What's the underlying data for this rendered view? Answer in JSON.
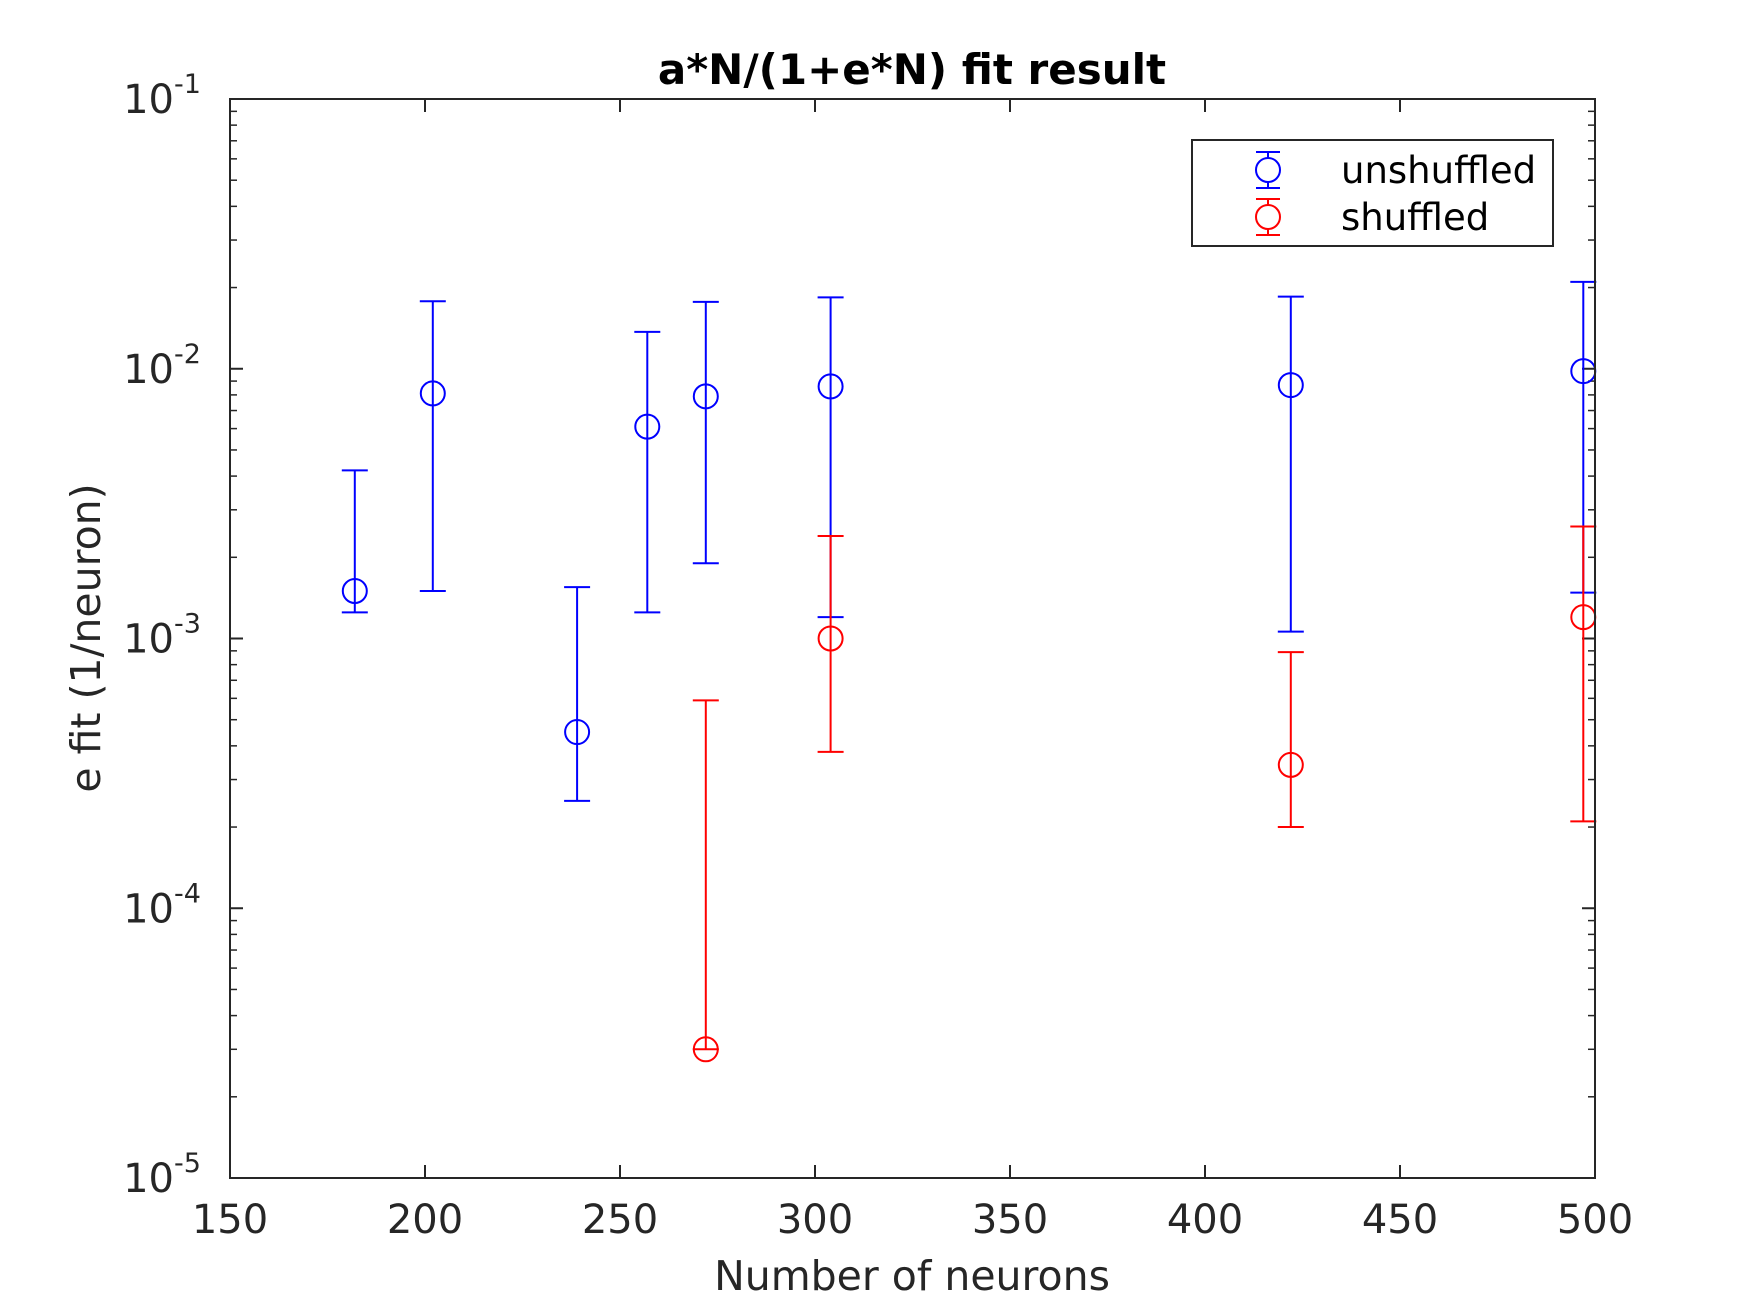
{
  "chart_data": {
    "type": "scatter",
    "title": "a*N/(1+e*N) fit result",
    "xlabel": "Number of neurons",
    "ylabel": "e fit (1/neuron)",
    "xlim": [
      150,
      500
    ],
    "ylim": [
      1e-05,
      0.1
    ],
    "yscale": "log",
    "grid": false,
    "legend_position": "top-right",
    "x_ticks": [
      150,
      200,
      250,
      300,
      350,
      400,
      450,
      500
    ],
    "x_tick_labels": [
      "150",
      "200",
      "250",
      "300",
      "350",
      "400",
      "450",
      "500"
    ],
    "y_ticks": [
      1e-05,
      0.0001,
      0.001,
      0.01,
      0.1
    ],
    "y_tick_labels": [
      {
        "base": "10",
        "exp": "-5"
      },
      {
        "base": "10",
        "exp": "-4"
      },
      {
        "base": "10",
        "exp": "-3"
      },
      {
        "base": "10",
        "exp": "-2"
      },
      {
        "base": "10",
        "exp": "-1"
      }
    ],
    "series": [
      {
        "name": "unshuffled",
        "color": "#0000ff",
        "marker": "circle",
        "points": [
          {
            "x": 182,
            "y": 0.0015,
            "lower": 0.00125,
            "upper": 0.0042
          },
          {
            "x": 202,
            "y": 0.0081,
            "lower": 0.0015,
            "upper": 0.0178
          },
          {
            "x": 239,
            "y": 0.00045,
            "lower": 0.00025,
            "upper": 0.00155
          },
          {
            "x": 257,
            "y": 0.0061,
            "lower": 0.00125,
            "upper": 0.0137
          },
          {
            "x": 272,
            "y": 0.0079,
            "lower": 0.0019,
            "upper": 0.0177
          },
          {
            "x": 304,
            "y": 0.0086,
            "lower": 0.0012,
            "upper": 0.0184
          },
          {
            "x": 422,
            "y": 0.0087,
            "lower": 0.00106,
            "upper": 0.0185
          },
          {
            "x": 497,
            "y": 0.0098,
            "lower": 0.00148,
            "upper": 0.021
          }
        ]
      },
      {
        "name": "shuffled",
        "color": "#ff0000",
        "marker": "circle",
        "points": [
          {
            "x": 272,
            "y": 3e-05,
            "lower": 3e-05,
            "upper": 0.00059
          },
          {
            "x": 304,
            "y": 0.001,
            "lower": 0.00038,
            "upper": 0.0024
          },
          {
            "x": 422,
            "y": 0.00034,
            "lower": 0.0002,
            "upper": 0.00089
          },
          {
            "x": 497,
            "y": 0.0012,
            "lower": 0.00021,
            "upper": 0.0026
          }
        ]
      }
    ]
  }
}
